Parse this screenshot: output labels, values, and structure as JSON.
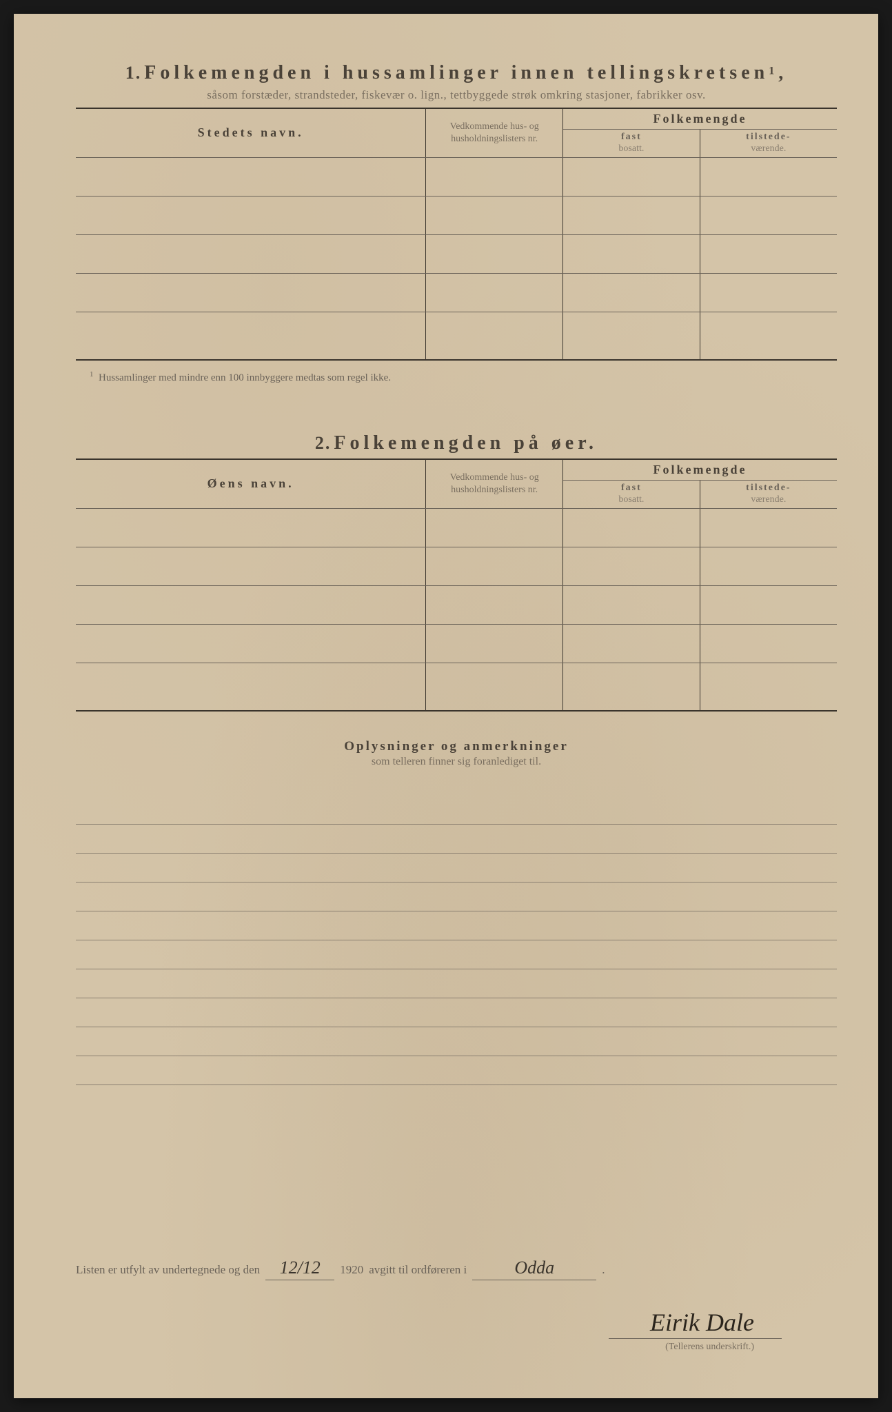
{
  "colors": {
    "paper": "#d4c4a8",
    "ink_dark": "#3a342c",
    "ink_medium": "#5a5048",
    "ink_light": "#7a6f60",
    "rule": "#6a6258"
  },
  "section1": {
    "number": "1.",
    "title": "Folkemengden i hussamlinger innen tellingskretsen",
    "superscript": "1",
    "subtitle": "såsom forstæder, strandsteder, fiskevær o. lign., tettbyggede strøk omkring stasjoner, fabrikker osv.",
    "columns": {
      "name": "Stedets navn.",
      "reference": "Vedkommende hus- og husholdningslisters nr.",
      "population": "Folkemengde",
      "fast_bold": "fast",
      "fast_light": "bosatt.",
      "tilstede_bold": "tilstede-",
      "tilstede_light": "værende."
    },
    "row_count": 5,
    "footnote": "Hussamlinger med mindre enn 100 innbyggere medtas som regel ikke."
  },
  "section2": {
    "number": "2.",
    "title": "Folkemengden på øer.",
    "columns": {
      "name": "Øens navn.",
      "reference": "Vedkommende hus- og husholdningslisters nr.",
      "population": "Folkemengde",
      "fast_bold": "fast",
      "fast_light": "bosatt.",
      "tilstede_bold": "tilstede-",
      "tilstede_light": "værende."
    },
    "row_count": 5
  },
  "section3": {
    "title": "Oplysninger og anmerkninger",
    "subtitle": "som telleren finner sig foranlediget til.",
    "line_count": 10
  },
  "signature": {
    "prefix": "Listen er utfylt av undertegnede og den",
    "date_value": "12/12",
    "year": "1920",
    "middle": "avgitt til ordføreren i",
    "place_value": "Odda",
    "suffix": ".",
    "name": "Eirik Dale",
    "label": "(Tellerens underskrift.)"
  }
}
